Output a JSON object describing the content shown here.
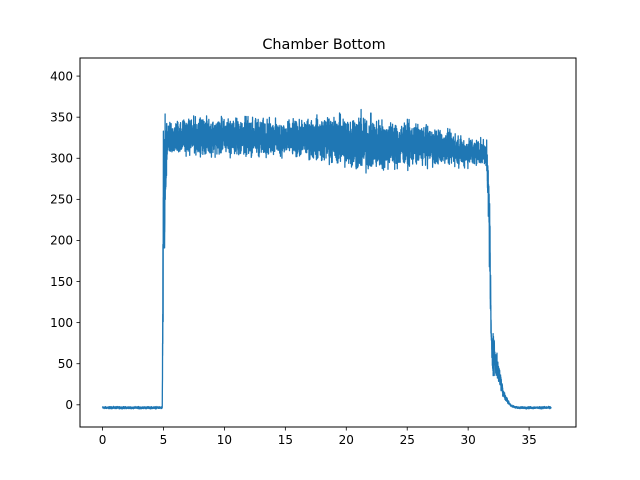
{
  "chart_data": {
    "type": "line",
    "title": "Chamber Bottom",
    "xlabel": "",
    "ylabel": "",
    "xlim": [
      -1.85,
      38.85
    ],
    "ylim": [
      -27,
      422
    ],
    "x_ticks": [
      0,
      5,
      10,
      15,
      20,
      25,
      30,
      35
    ],
    "y_ticks": [
      0,
      50,
      100,
      150,
      200,
      250,
      300,
      350,
      400
    ],
    "grid": false,
    "legend": "none",
    "series_color": "#1f77b4",
    "series": [
      {
        "envelope": {
          "x": [
            0,
            4.9,
            5.0,
            5.3,
            6,
            8,
            10,
            12,
            14,
            16,
            18,
            20,
            21,
            22,
            24,
            26,
            28,
            30,
            31.5,
            31.75,
            31.9,
            32.1,
            32.3,
            32.6,
            33.0,
            33.5,
            34.0,
            35.0,
            36.0,
            36.8
          ],
          "low": [
            -5,
            -5,
            70,
            295,
            302,
            301,
            300,
            298,
            299,
            298,
            293,
            283,
            276,
            278,
            283,
            287,
            288,
            287,
            290,
            150,
            45,
            32,
            30,
            18,
            5,
            -2,
            -5,
            -5,
            -5,
            -5
          ],
          "high": [
            -2,
            -2,
            395,
            342,
            350,
            353,
            352,
            353,
            350,
            348,
            356,
            358,
            362,
            355,
            350,
            345,
            338,
            328,
            324,
            300,
            98,
            95,
            70,
            45,
            15,
            0,
            -2,
            -2,
            -2,
            -2
          ]
        }
      }
    ]
  }
}
